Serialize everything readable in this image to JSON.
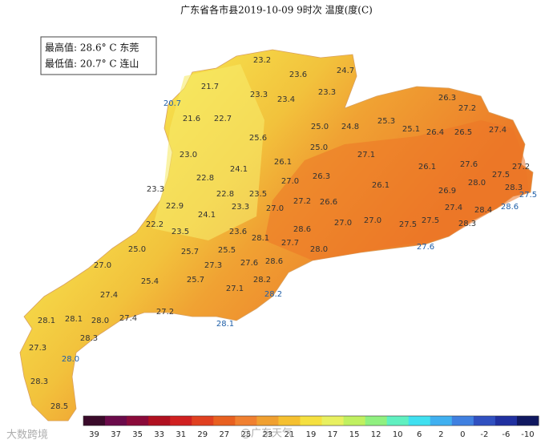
{
  "title": "广东省各市县2019-10-09 9时次 温度(度(C)",
  "info": {
    "max": "最高值: 28.6° C 东莞",
    "min": "最低值: 20.7° C 连山"
  },
  "stations": {
    "values": [
      23.2,
      23.6,
      24.7,
      21.7,
      23.3,
      23.4,
      23.3,
      20.7,
      21.6,
      22.7,
      26.3,
      27.2,
      25.0,
      24.8,
      25.3,
      25.1,
      26.4,
      26.5,
      27.4,
      25.6,
      25.0,
      23.0,
      27.1,
      26.1,
      24.1,
      26.1,
      27.6,
      27.2,
      22.8,
      26.3,
      27.0,
      27.5,
      28.0,
      23.3,
      22.8,
      23.5,
      26.1,
      28.3,
      27.5,
      26.9,
      27.2,
      26.6,
      22.9,
      23.3,
      27.0,
      27.4,
      28.4,
      28.6,
      24.1,
      22.2,
      28.6,
      27.0,
      27.0,
      27.5,
      27.5,
      28.3,
      23.5,
      23.6,
      28.1,
      27.7,
      28.0,
      25.0,
      25.7,
      25.5,
      27.6,
      27.0,
      27.3,
      27.6,
      28.6,
      25.4,
      25.7,
      28.2,
      27.1,
      27.4,
      28.2,
      27.2,
      28.1,
      28.1,
      28.0,
      27.4,
      28.1,
      28.3,
      27.3,
      28.0,
      28.3,
      28.5
    ],
    "value_labels": [
      "23.2",
      "23.6",
      "24.7",
      "21.7",
      "23.3",
      "23.4",
      "23.3",
      "20.7",
      "21.6",
      "22.7",
      "26.3",
      "27.2",
      "25.0",
      "24.8",
      "25.3",
      "25.1",
      "26.4",
      "26.5",
      "27.4",
      "25.6",
      "25.0",
      "23.0",
      "27.1",
      "26.1",
      "24.1",
      "26.1",
      "27.6",
      "27.2",
      "22.8",
      "26.3",
      "27.0",
      "27.5",
      "28.0",
      "23.3",
      "22.8",
      "23.5",
      "26.1",
      "28.3",
      "27.5",
      "26.9",
      "27.2",
      "26.6",
      "22.9",
      "23.3",
      "27.0",
      "27.4",
      "28.4",
      "28.6",
      "24.1",
      "22.2",
      "28.6",
      "27.0",
      "27.0",
      "27.5",
      "27.5",
      "28.3",
      "23.5",
      "23.6",
      "28.1",
      "27.7",
      "28.0",
      "25.0",
      "25.7",
      "25.5",
      "27.6",
      "27.0",
      "27.3",
      "27.6",
      "28.6",
      "25.4",
      "25.7",
      "28.2",
      "27.1",
      "27.4",
      "28.2",
      "27.2",
      "28.1",
      "28.1",
      "28.0",
      "27.4",
      "28.1",
      "28.3",
      "27.3",
      "28.0",
      "28.3",
      "28.5"
    ]
  },
  "colorbar": {
    "ticks": [
      39,
      37,
      35,
      33,
      31,
      29,
      27,
      25,
      23,
      21,
      19,
      17,
      15,
      12,
      10,
      6,
      2,
      0,
      -2,
      -6,
      -10
    ],
    "colors": [
      "#3a0a2a",
      "#6a0a4a",
      "#8a0a3a",
      "#b01020",
      "#d02020",
      "#e04020",
      "#e86020",
      "#f08030",
      "#f0a030",
      "#f5c030",
      "#f5e040",
      "#e8f060",
      "#c0f060",
      "#90f080",
      "#60f0c0",
      "#40e0f0",
      "#40b0f0",
      "#4080e0",
      "#3050c0",
      "#2030a0",
      "#101860"
    ]
  },
  "watermarks": [
    "大数跨境",
    "@广东天气"
  ]
}
